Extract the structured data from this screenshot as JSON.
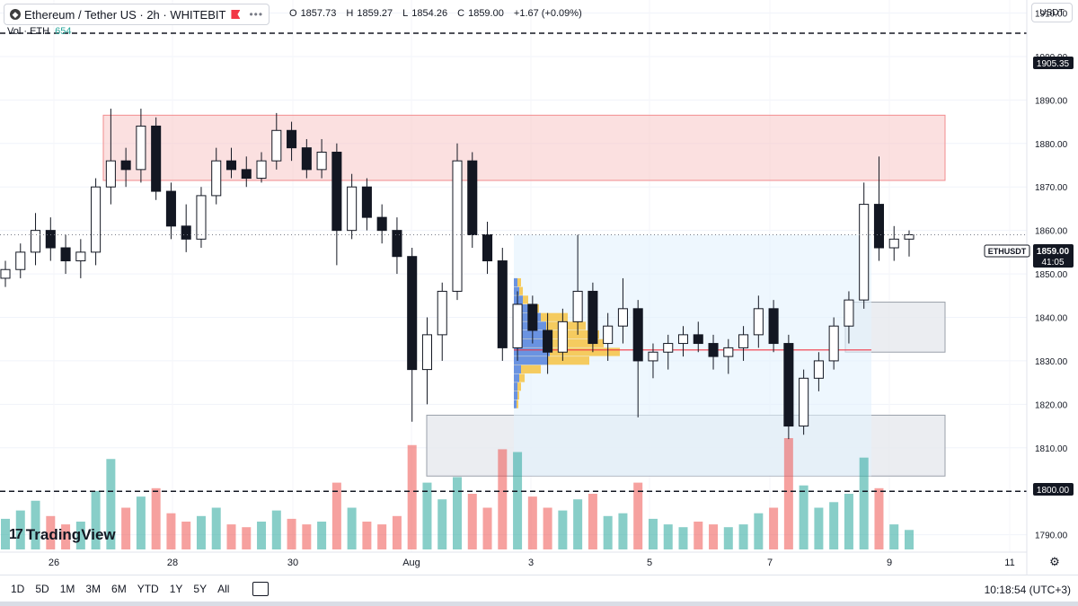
{
  "header": {
    "symbol_title": "Ethereum / Tether US · 2h · WHITEBIT",
    "open_label": "O",
    "open": "1857.73",
    "high_label": "H",
    "high": "1859.27",
    "low_label": "L",
    "low": "1854.26",
    "close_label": "C",
    "close": "1859.00",
    "change": "+1.67 (+0.09%)",
    "volume_label": "Vol · ETH",
    "volume_value": "654",
    "currency": "USDT"
  },
  "price_axis": {
    "ticks": [
      "1910.00",
      "1900.00",
      "1890.00",
      "1880.00",
      "1870.00",
      "1860.00",
      "1850.00",
      "1840.00",
      "1830.00",
      "1820.00",
      "1810.00",
      "1800.00",
      "1790.00"
    ],
    "tick_values": [
      1910,
      1900,
      1890,
      1880,
      1870,
      1860,
      1850,
      1840,
      1830,
      1820,
      1810,
      1800,
      1790
    ],
    "level_1905": "1905.35",
    "level_1800": "1800.00",
    "last_symbol": "ETHUSDT",
    "last_price": "1859.00",
    "countdown": "41:05"
  },
  "time_axis": {
    "labels": [
      "26",
      "28",
      "30",
      "Aug",
      "3",
      "5",
      "7",
      "9",
      "11"
    ]
  },
  "bottom_bar": {
    "timeframes": [
      "1D",
      "5D",
      "1M",
      "3M",
      "6M",
      "YTD",
      "1Y",
      "5Y",
      "All"
    ],
    "clock": "10:18:54 (UTC+3)"
  },
  "branding": {
    "logo_text": "TradingView"
  },
  "colors": {
    "up": "#26a69a",
    "down": "#ef5350",
    "candle": "#131722",
    "resistance_zone": "#f7c6c7",
    "support_zone": "#e6e8ed",
    "range_zone": "#e3f2fd",
    "poc_line": "#f23645",
    "vp_blue": "#5b8def",
    "vp_yellow": "#f6c343"
  },
  "chart_data": {
    "type": "candlestick",
    "instrument": "ETHUSDT",
    "timeframe": "2h",
    "y_range": [
      1786,
      1913
    ],
    "horizontal_levels": [
      1905.35,
      1800.0
    ],
    "zones": [
      {
        "kind": "resistance",
        "price_low": 1871.5,
        "price_high": 1886.5
      },
      {
        "kind": "support",
        "price_low": 1803.5,
        "price_high": 1817.5
      },
      {
        "kind": "demand",
        "price_low": 1832.0,
        "price_high": 1843.5
      }
    ],
    "point_of_control": 1832.5,
    "last_price": 1859.0,
    "candles_approx": [
      {
        "d": "Jul 25",
        "o": 1849,
        "h": 1853,
        "l": 1847,
        "c": 1851
      },
      {
        "d": "Jul 25",
        "o": 1851,
        "h": 1857,
        "l": 1849,
        "c": 1855
      },
      {
        "d": "Jul 26",
        "o": 1855,
        "h": 1864,
        "l": 1852,
        "c": 1860
      },
      {
        "d": "Jul 26",
        "o": 1860,
        "h": 1863,
        "l": 1853,
        "c": 1856
      },
      {
        "d": "Jul 26",
        "o": 1856,
        "h": 1859,
        "l": 1850,
        "c": 1853
      },
      {
        "d": "Jul 26",
        "o": 1853,
        "h": 1858,
        "l": 1849,
        "c": 1855
      },
      {
        "d": "Jul 27",
        "o": 1855,
        "h": 1872,
        "l": 1852,
        "c": 1870
      },
      {
        "d": "Jul 27",
        "o": 1870,
        "h": 1888,
        "l": 1866,
        "c": 1876
      },
      {
        "d": "Jul 27",
        "o": 1876,
        "h": 1879,
        "l": 1870,
        "c": 1874
      },
      {
        "d": "Jul 27",
        "o": 1874,
        "h": 1888,
        "l": 1871,
        "c": 1884
      },
      {
        "d": "Jul 28",
        "o": 1884,
        "h": 1886,
        "l": 1867,
        "c": 1869
      },
      {
        "d": "Jul 28",
        "o": 1869,
        "h": 1871,
        "l": 1858,
        "c": 1861
      },
      {
        "d": "Jul 28",
        "o": 1861,
        "h": 1866,
        "l": 1855,
        "c": 1858
      },
      {
        "d": "Jul 28",
        "o": 1858,
        "h": 1870,
        "l": 1856,
        "c": 1868
      },
      {
        "d": "Jul 29",
        "o": 1868,
        "h": 1879,
        "l": 1866,
        "c": 1876
      },
      {
        "d": "Jul 29",
        "o": 1876,
        "h": 1879,
        "l": 1872,
        "c": 1874
      },
      {
        "d": "Jul 29",
        "o": 1874,
        "h": 1877,
        "l": 1870,
        "c": 1872
      },
      {
        "d": "Jul 29",
        "o": 1872,
        "h": 1878,
        "l": 1871,
        "c": 1876
      },
      {
        "d": "Jul 30",
        "o": 1876,
        "h": 1887,
        "l": 1874,
        "c": 1883
      },
      {
        "d": "Jul 30",
        "o": 1883,
        "h": 1885,
        "l": 1876,
        "c": 1879
      },
      {
        "d": "Jul 30",
        "o": 1879,
        "h": 1881,
        "l": 1872,
        "c": 1874
      },
      {
        "d": "Jul 30",
        "o": 1874,
        "h": 1881,
        "l": 1872,
        "c": 1878
      },
      {
        "d": "Jul 31",
        "o": 1878,
        "h": 1880,
        "l": 1852,
        "c": 1860
      },
      {
        "d": "Jul 31",
        "o": 1860,
        "h": 1873,
        "l": 1858,
        "c": 1870
      },
      {
        "d": "Jul 31",
        "o": 1870,
        "h": 1872,
        "l": 1860,
        "c": 1863
      },
      {
        "d": "Jul 31",
        "o": 1863,
        "h": 1866,
        "l": 1857,
        "c": 1860
      },
      {
        "d": "Aug 1",
        "o": 1860,
        "h": 1863,
        "l": 1850,
        "c": 1854
      },
      {
        "d": "Aug 1",
        "o": 1854,
        "h": 1856,
        "l": 1816,
        "c": 1828
      },
      {
        "d": "Aug 1",
        "o": 1828,
        "h": 1840,
        "l": 1820,
        "c": 1836
      },
      {
        "d": "Aug 1",
        "o": 1836,
        "h": 1848,
        "l": 1830,
        "c": 1846
      },
      {
        "d": "Aug 2",
        "o": 1846,
        "h": 1880,
        "l": 1844,
        "c": 1876
      },
      {
        "d": "Aug 2",
        "o": 1876,
        "h": 1878,
        "l": 1856,
        "c": 1859
      },
      {
        "d": "Aug 2",
        "o": 1859,
        "h": 1862,
        "l": 1850,
        "c": 1853
      },
      {
        "d": "Aug 2",
        "o": 1853,
        "h": 1856,
        "l": 1830,
        "c": 1833
      },
      {
        "d": "Aug 3",
        "o": 1833,
        "h": 1846,
        "l": 1830,
        "c": 1843
      },
      {
        "d": "Aug 3",
        "o": 1843,
        "h": 1845,
        "l": 1834,
        "c": 1837
      },
      {
        "d": "Aug 3",
        "o": 1837,
        "h": 1841,
        "l": 1827,
        "c": 1832
      },
      {
        "d": "Aug 3",
        "o": 1832,
        "h": 1842,
        "l": 1830,
        "c": 1839
      },
      {
        "d": "Aug 4",
        "o": 1839,
        "h": 1859,
        "l": 1836,
        "c": 1846
      },
      {
        "d": "Aug 4",
        "o": 1846,
        "h": 1848,
        "l": 1832,
        "c": 1834
      },
      {
        "d": "Aug 4",
        "o": 1834,
        "h": 1841,
        "l": 1830,
        "c": 1838
      },
      {
        "d": "Aug 4",
        "o": 1838,
        "h": 1849,
        "l": 1834,
        "c": 1842
      },
      {
        "d": "Aug 5",
        "o": 1842,
        "h": 1844,
        "l": 1817,
        "c": 1830
      },
      {
        "d": "Aug 5",
        "o": 1830,
        "h": 1834,
        "l": 1826,
        "c": 1832
      },
      {
        "d": "Aug 5",
        "o": 1832,
        "h": 1836,
        "l": 1828,
        "c": 1834
      },
      {
        "d": "Aug 5",
        "o": 1834,
        "h": 1838,
        "l": 1831,
        "c": 1836
      },
      {
        "d": "Aug 6",
        "o": 1836,
        "h": 1839,
        "l": 1832,
        "c": 1834
      },
      {
        "d": "Aug 6",
        "o": 1834,
        "h": 1836,
        "l": 1828,
        "c": 1831
      },
      {
        "d": "Aug 6",
        "o": 1831,
        "h": 1835,
        "l": 1827,
        "c": 1833
      },
      {
        "d": "Aug 6",
        "o": 1833,
        "h": 1838,
        "l": 1830,
        "c": 1836
      },
      {
        "d": "Aug 7",
        "o": 1836,
        "h": 1845,
        "l": 1833,
        "c": 1842
      },
      {
        "d": "Aug 7",
        "o": 1842,
        "h": 1844,
        "l": 1832,
        "c": 1834
      },
      {
        "d": "Aug 7",
        "o": 1834,
        "h": 1836,
        "l": 1812,
        "c": 1815
      },
      {
        "d": "Aug 7",
        "o": 1815,
        "h": 1828,
        "l": 1813,
        "c": 1826
      },
      {
        "d": "Aug 8",
        "o": 1826,
        "h": 1832,
        "l": 1823,
        "c": 1830
      },
      {
        "d": "Aug 8",
        "o": 1830,
        "h": 1840,
        "l": 1828,
        "c": 1838
      },
      {
        "d": "Aug 8",
        "o": 1838,
        "h": 1846,
        "l": 1834,
        "c": 1844
      },
      {
        "d": "Aug 8",
        "o": 1844,
        "h": 1871,
        "l": 1842,
        "c": 1866
      },
      {
        "d": "Aug 9",
        "o": 1866,
        "h": 1877,
        "l": 1853,
        "c": 1856
      },
      {
        "d": "Aug 9",
        "o": 1856,
        "h": 1861,
        "l": 1853,
        "c": 1858
      },
      {
        "d": "Aug 9",
        "o": 1858,
        "h": 1860,
        "l": 1854,
        "c": 1859
      }
    ],
    "volume_approx": [
      22,
      28,
      35,
      24,
      18,
      20,
      42,
      65,
      30,
      38,
      44,
      26,
      20,
      24,
      30,
      18,
      16,
      20,
      28,
      22,
      18,
      20,
      48,
      30,
      20,
      18,
      24,
      75,
      48,
      36,
      52,
      40,
      30,
      72,
      70,
      38,
      30,
      28,
      36,
      40,
      24,
      26,
      48,
      22,
      18,
      16,
      20,
      18,
      16,
      18,
      26,
      30,
      80,
      46,
      30,
      34,
      40,
      66,
      44,
      18,
      14
    ]
  }
}
